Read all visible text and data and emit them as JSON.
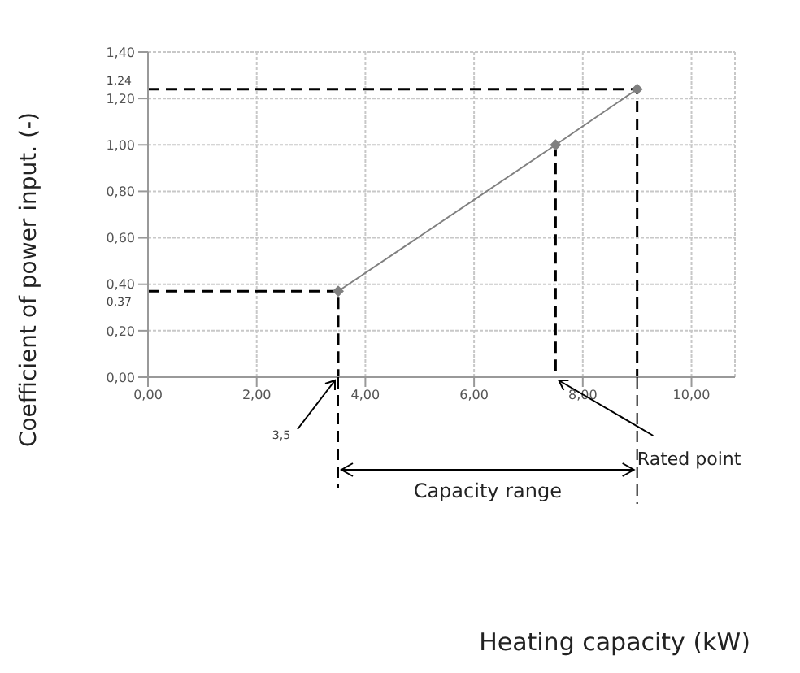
{
  "chart_data": {
    "type": "line",
    "ylabel": "Coefficient of power input. (-)",
    "xlim": [
      0,
      10.8
    ],
    "ylim": [
      0,
      1.4
    ],
    "xticks": [
      {
        "value": 0,
        "label": "0,00"
      },
      {
        "value": 2,
        "label": "2,00"
      },
      {
        "value": 4,
        "label": "4,00"
      },
      {
        "value": 6,
        "label": "6,00"
      },
      {
        "value": 8,
        "label": "8,00"
      },
      {
        "value": 10,
        "label": "10,00"
      }
    ],
    "yticks": [
      {
        "value": 0,
        "label": "0,00"
      },
      {
        "value": 0.2,
        "label": "0,20"
      },
      {
        "value": 0.4,
        "label": "0,40"
      },
      {
        "value": 0.6,
        "label": "0,60"
      },
      {
        "value": 0.8,
        "label": "0,80"
      },
      {
        "value": 1,
        "label": "1,00"
      },
      {
        "value": 1.2,
        "label": "1,20"
      },
      {
        "value": 1.4,
        "label": "1,40"
      }
    ],
    "grid": true,
    "series": [
      {
        "color": "#808080",
        "x": [
          3.5,
          7.5,
          9
        ],
        "values": [
          0.37,
          1.0,
          1.24
        ],
        "marker": "diamond",
        "line_style": "solid"
      },
      {
        "color": "#000000",
        "x": [
          0,
          3.5,
          3.5
        ],
        "values": [
          0.37,
          0.37,
          0
        ],
        "marker": "none",
        "line_style": "dashed"
      },
      {
        "color": "#000000",
        "x": [
          7.5,
          7.5
        ],
        "values": [
          1.0,
          0
        ],
        "marker": "none",
        "line_style": "dashed"
      },
      {
        "color": "#000000",
        "x": [
          0,
          9,
          9
        ],
        "values": [
          1.24,
          1.24,
          0
        ],
        "marker": "none",
        "line_style": "dashed"
      }
    ],
    "annotations": [
      {
        "text": "1,24",
        "x": 0,
        "y": 1.24
      },
      {
        "text": "0,37",
        "x": 0,
        "y": 0.37
      },
      {
        "text": "3,5",
        "x": 3.5,
        "y": 0
      },
      {
        "text": "Rated point",
        "x": 7.5,
        "y": 0
      },
      "Capacity range",
      {
        "text": "Heating capacity (kW)"
      }
    ]
  }
}
